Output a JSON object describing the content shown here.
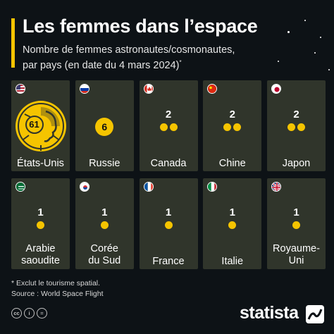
{
  "header": {
    "title": "Les femmes dans l’espace",
    "subtitle_line1": "Nombre de femmes astronautes/cosmonautes,",
    "subtitle_line2": "par pays (en date du 4 mars 2024)",
    "subtitle_marker": "*"
  },
  "colors": {
    "accent": "#f5c400",
    "card": "#30352b",
    "background": "#0d1216"
  },
  "chart_data": {
    "type": "table",
    "title": "Les femmes dans l’espace",
    "subtitle": "Nombre de femmes astronautes/cosmonautes, par pays (en date du 4 mars 2024)*",
    "unit_label": "Nombre de femmes astronautes/cosmonautes",
    "countries": [
      {
        "name_lines": [
          "États-Unis"
        ],
        "value": 61,
        "flag": "us-flag-icon"
      },
      {
        "name_lines": [
          "Russie"
        ],
        "value": 6,
        "flag": "russia-flag-icon"
      },
      {
        "name_lines": [
          "Canada"
        ],
        "value": 2,
        "flag": "canada-flag-icon"
      },
      {
        "name_lines": [
          "Chine"
        ],
        "value": 2,
        "flag": "china-flag-icon"
      },
      {
        "name_lines": [
          "Japon"
        ],
        "value": 2,
        "flag": "japan-flag-icon"
      },
      {
        "name_lines": [
          "Arabie",
          "saoudite"
        ],
        "value": 1,
        "flag": "saudi-flag-icon"
      },
      {
        "name_lines": [
          "Corée",
          "du Sud"
        ],
        "value": 1,
        "flag": "south-korea-flag-icon"
      },
      {
        "name_lines": [
          "France"
        ],
        "value": 1,
        "flag": "france-flag-icon"
      },
      {
        "name_lines": [
          "Italie"
        ],
        "value": 1,
        "flag": "italy-flag-icon"
      },
      {
        "name_lines": [
          "Royaume-",
          "Uni"
        ],
        "value": 1,
        "flag": "uk-flag-icon"
      }
    ]
  },
  "footer": {
    "note": "* Exclut le tourisme spatial.",
    "source": "Source : World Space Flight",
    "license_icons": [
      "cc-icon",
      "by-icon",
      "equals-icon"
    ],
    "license_glyphs": [
      "cc",
      "i",
      "="
    ],
    "brand": "statista",
    "brand_icon": "statista-logo-icon"
  }
}
